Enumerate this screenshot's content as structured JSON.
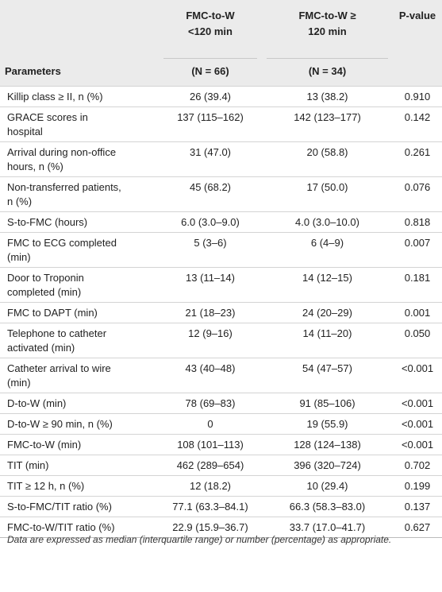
{
  "table": {
    "header": {
      "parameter": "Parameters",
      "w_lt120": {
        "lines": [
          "FMC-to-W",
          "<120 min"
        ],
        "n": "(N = 66)"
      },
      "w_ge120": {
        "lines": [
          "FMC-to-W ≥",
          "120 min"
        ],
        "n": "(N = 34)"
      },
      "p": {
        "lines": [
          "P-value"
        ]
      }
    },
    "rows": [
      {
        "parameter": [
          "Killip class ≥ II, n (%)"
        ],
        "w_lt120": "26 (39.4)",
        "w_ge120": "13 (38.2)",
        "p": "0.910"
      },
      {
        "parameter": [
          "GRACE scores in",
          "hospital"
        ],
        "w_lt120": "137 (115–162)",
        "w_ge120": "142 (123–177)",
        "p": "0.142"
      },
      {
        "parameter": [
          "Arrival during non-office",
          "hours, n (%)"
        ],
        "w_lt120": "31 (47.0)",
        "w_ge120": "20 (58.8)",
        "p": "0.261"
      },
      {
        "parameter": [
          "Non-transferred patients,",
          "n (%)"
        ],
        "w_lt120": "45 (68.2)",
        "w_ge120": "17 (50.0)",
        "p": "0.076"
      },
      {
        "parameter": [
          "S-to-FMC (hours)"
        ],
        "w_lt120": "6.0 (3.0–9.0)",
        "w_ge120": "4.0 (3.0–10.0)",
        "p": "0.818"
      },
      {
        "parameter": [
          "FMC to ECG completed",
          "(min)"
        ],
        "w_lt120": "5 (3–6)",
        "w_ge120": "6 (4–9)",
        "p": "0.007"
      },
      {
        "parameter": [
          "Door to Troponin",
          "completed (min)"
        ],
        "w_lt120": "13 (11–14)",
        "w_ge120": "14 (12–15)",
        "p": "0.181"
      },
      {
        "parameter": [
          "FMC to DAPT (min)"
        ],
        "w_lt120": "21 (18–23)",
        "w_ge120": "24 (20–29)",
        "p": "0.001"
      },
      {
        "parameter": [
          "Telephone to catheter",
          "activated (min)"
        ],
        "w_lt120": "12 (9–16)",
        "w_ge120": "14 (11–20)",
        "p": "0.050"
      },
      {
        "parameter": [
          "Catheter arrival to wire",
          "(min)"
        ],
        "w_lt120": "43 (40–48)",
        "w_ge120": "54 (47–57)",
        "p": "<0.001"
      },
      {
        "parameter": [
          "D-to-W (min)"
        ],
        "w_lt120": "78 (69–83)",
        "w_ge120": "91 (85–106)",
        "p": "<0.001"
      },
      {
        "parameter": [
          "D-to-W ≥ 90 min, n (%)"
        ],
        "w_lt120": "0",
        "w_ge120": "19 (55.9)",
        "p": "<0.001"
      },
      {
        "parameter": [
          "FMC-to-W (min)"
        ],
        "w_lt120": "108 (101–113)",
        "w_ge120": "128 (124–138)",
        "p": "<0.001"
      },
      {
        "parameter": [
          "TIT (min)"
        ],
        "w_lt120": "462 (289–654)",
        "w_ge120": "396 (320–724)",
        "p": "0.702"
      },
      {
        "parameter": [
          "TIT ≥ 12 h, n (%)"
        ],
        "w_lt120": "12 (18.2)",
        "w_ge120": "10 (29.4)",
        "p": "0.199"
      },
      {
        "parameter": [
          "S-to-FMC/TIT ratio (%)"
        ],
        "w_lt120": "77.1 (63.3–84.1)",
        "w_ge120": "66.3 (58.3–83.0)",
        "p": "0.137"
      },
      {
        "parameter": [
          "FMC-to-W/TIT ratio (%)"
        ],
        "w_lt120": "22.9 (15.9–36.7)",
        "w_ge120": "33.7 (17.0–41.7)",
        "p": "0.627"
      }
    ],
    "note": "Data are expressed as median (interquartile range) or number (percentage) as appropriate."
  }
}
